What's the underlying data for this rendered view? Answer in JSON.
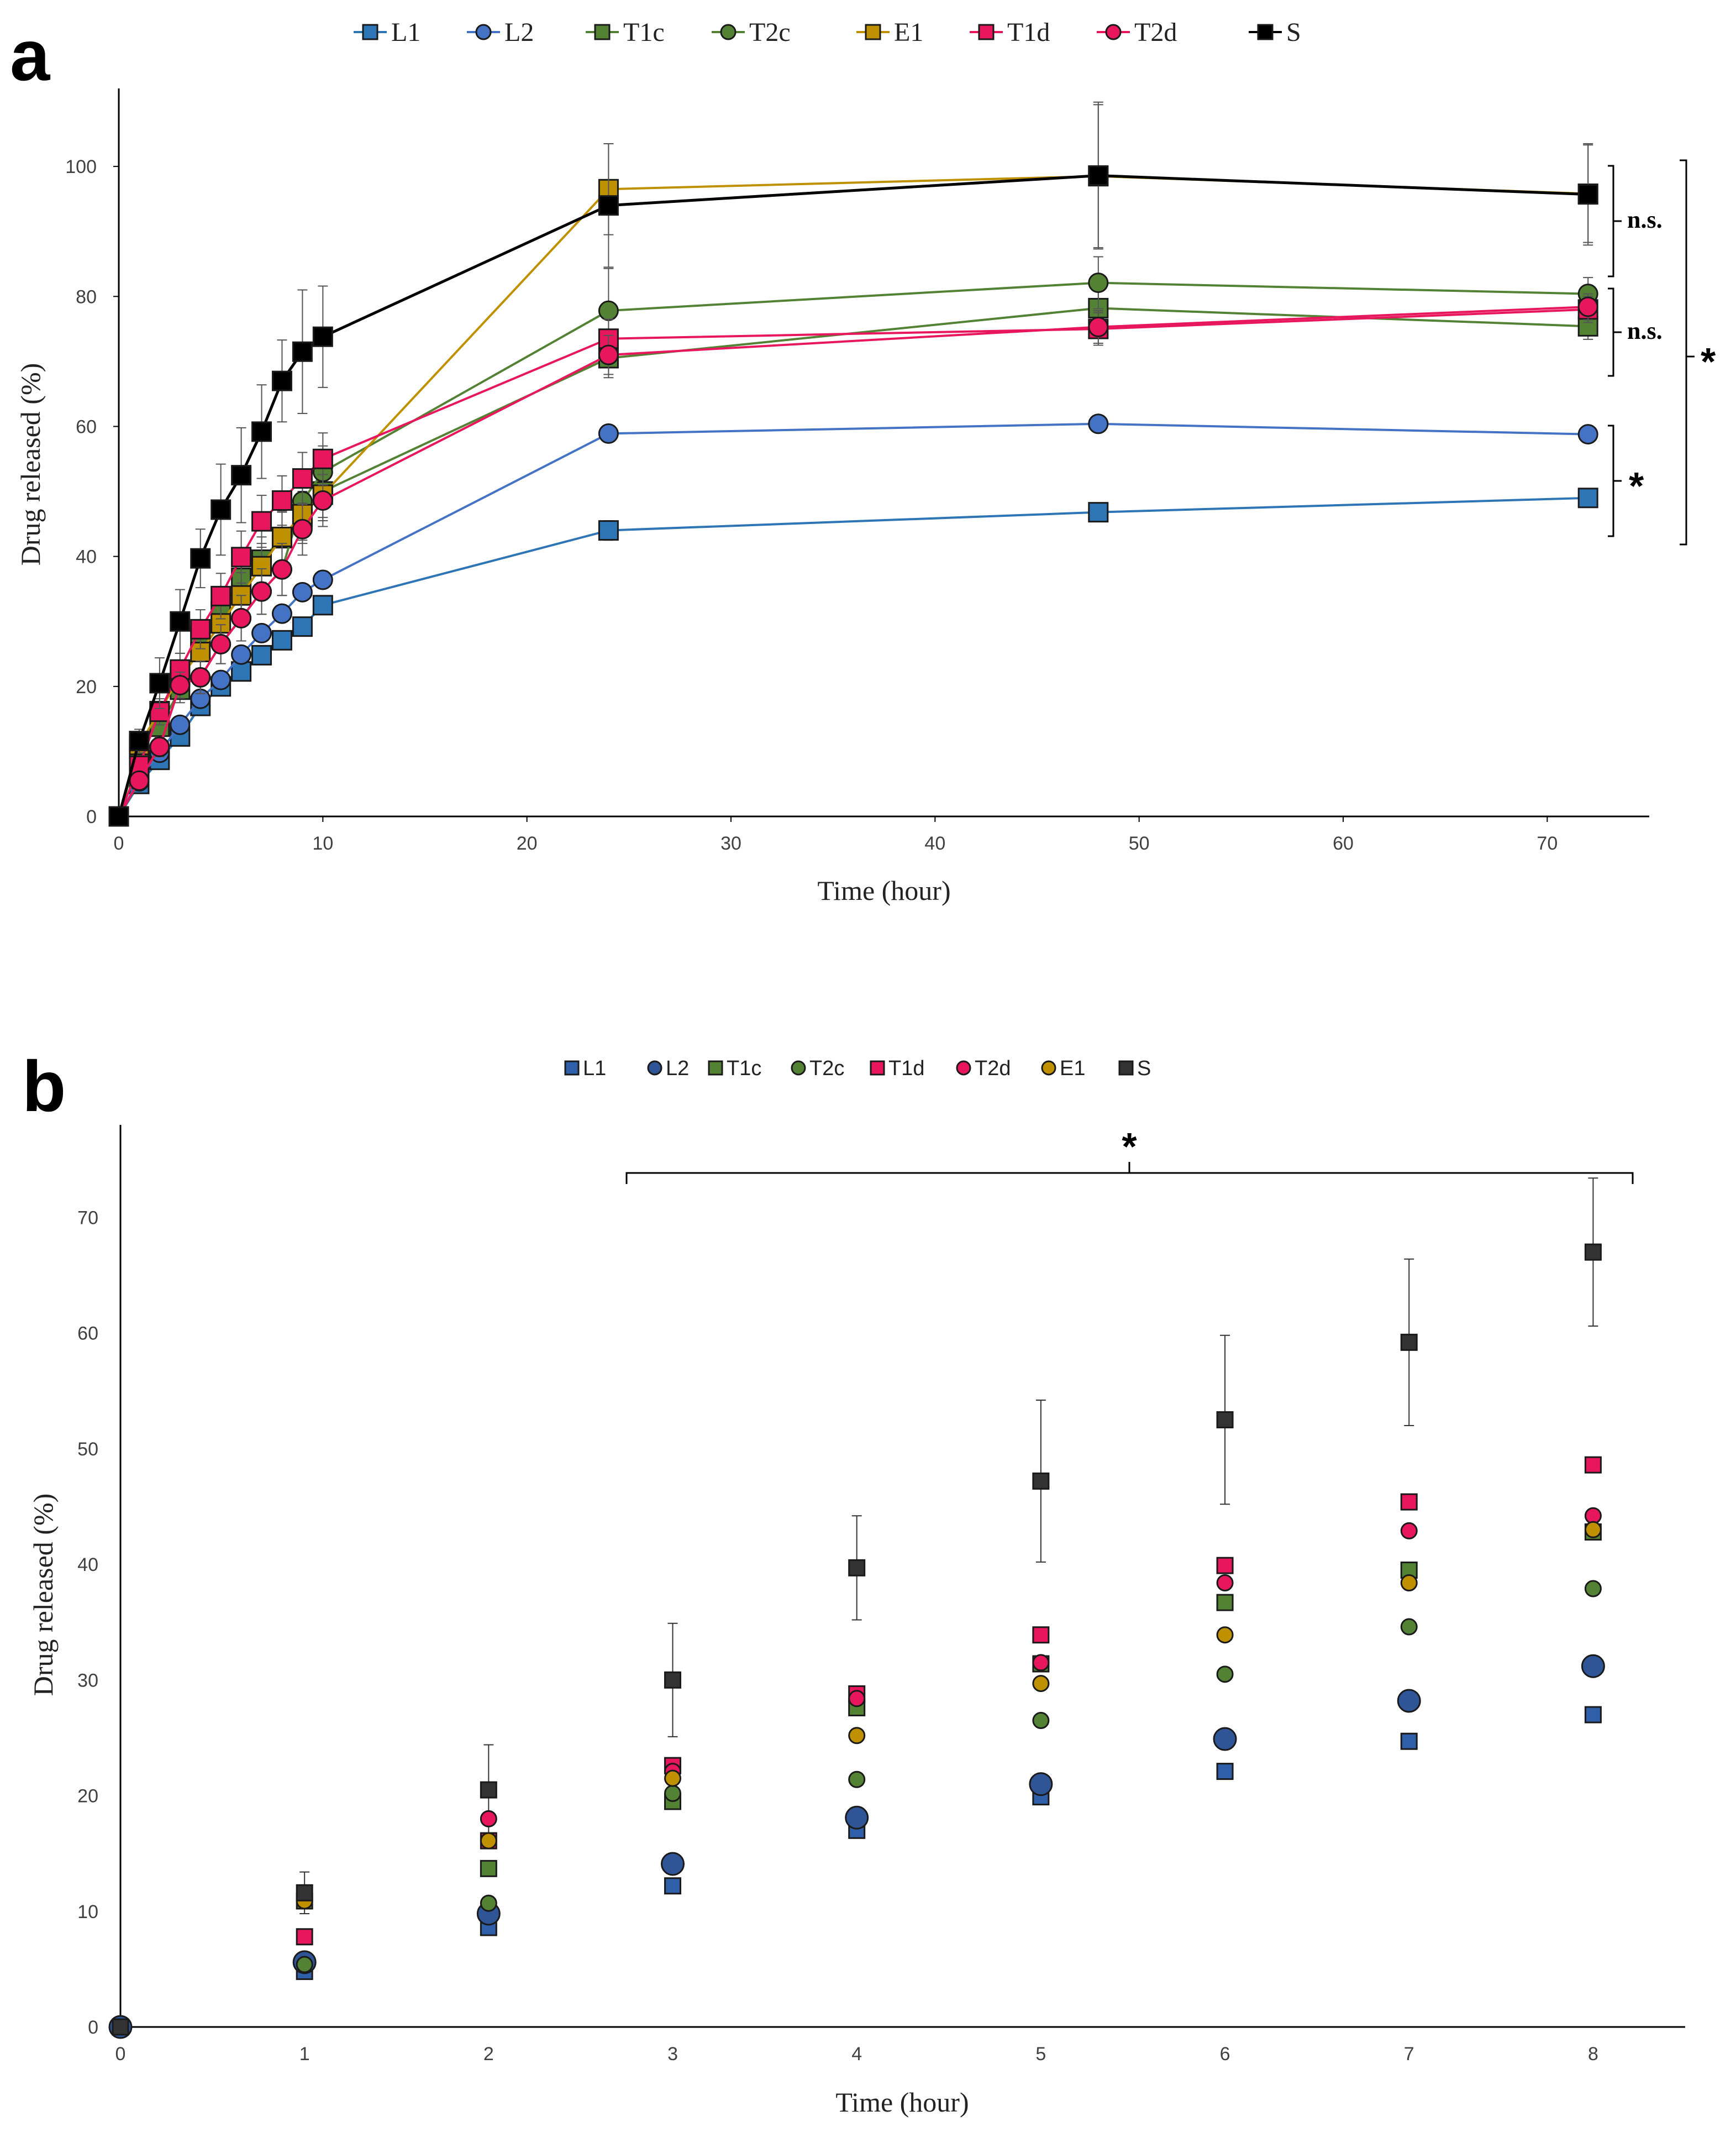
{
  "chart_data": [
    {
      "panel": "a",
      "type": "line",
      "xlabel": "Time (hour)",
      "ylabel": "Drug released (%)",
      "xlim": [
        0,
        75
      ],
      "ylim": [
        0,
        112
      ],
      "xticks": [
        "0",
        "10",
        "20",
        "30",
        "40",
        "50",
        "60",
        "70"
      ],
      "yticks": [
        "0",
        "20",
        "40",
        "60",
        "80",
        "100"
      ],
      "legend_position": "top-center",
      "x": [
        0,
        1,
        2,
        3,
        4,
        5,
        6,
        7,
        8,
        9,
        10,
        24,
        48,
        72
      ],
      "series": [
        {
          "name": "L1",
          "color": "#2E75B6",
          "marker": "square",
          "values": [
            0,
            5,
            8.7,
            12.3,
            17,
            20,
            22.3,
            24.8,
            27.1,
            29.2,
            32.5,
            44,
            46.8,
            49
          ],
          "errors": [
            0,
            0.5,
            0.6,
            0.7,
            0.8,
            0.8,
            0.9,
            1,
            1,
            1,
            1.1,
            1.5,
            1,
            1
          ]
        },
        {
          "name": "L2",
          "color": "#4472C4",
          "marker": "circle",
          "values": [
            0,
            5.8,
            9.8,
            14.1,
            18.1,
            21,
            24.9,
            28.2,
            31.2,
            34.5,
            36.4,
            58.9,
            60.4,
            58.8
          ],
          "errors": [
            0,
            0.5,
            0.7,
            0.8,
            0.9,
            1,
            1.1,
            1.1,
            1.2,
            1.2,
            1.3,
            1,
            1,
            1
          ]
        },
        {
          "name": "T1c",
          "color": "#548235",
          "marker": "square",
          "values": [
            0,
            10.5,
            13.8,
            19.5,
            27.6,
            31.5,
            36.7,
            39.5,
            42.8,
            46,
            50,
            70.5,
            78.2,
            75.4
          ],
          "errors": [
            0,
            1,
            1.5,
            2,
            2.5,
            3,
            3.5,
            3.5,
            4,
            4,
            4,
            3,
            3,
            2
          ]
        },
        {
          "name": "T2c",
          "color": "#548235",
          "marker": "circle",
          "values": [
            0,
            5.4,
            10.7,
            20.2,
            21.4,
            26.5,
            30.5,
            34.6,
            38,
            48.5,
            53,
            77.8,
            82.1,
            80.4
          ],
          "errors": [
            0,
            1,
            1.5,
            2,
            2.5,
            3,
            3.5,
            3.5,
            4,
            4,
            4,
            6.5,
            4,
            2.5
          ]
        },
        {
          "name": "E1",
          "color": "#BF9000",
          "marker": "square",
          "values": [
            0,
            11,
            16.2,
            21.5,
            25.3,
            29.7,
            34,
            38.5,
            43,
            46.5,
            49.5,
            96.5,
            98.5,
            95.8
          ],
          "errors": [
            0,
            1,
            1.5,
            2,
            2.5,
            3,
            3.5,
            3.5,
            4,
            4,
            4,
            7,
            11,
            7.5
          ]
        },
        {
          "name": "T1d",
          "color": "#E8175D",
          "marker": "square",
          "values": [
            0,
            7.8,
            16.1,
            22.6,
            28.8,
            33.9,
            39.9,
            45.4,
            48.6,
            52,
            55,
            73.5,
            75,
            78
          ],
          "errors": [
            0,
            1,
            2,
            2.5,
            3,
            3.5,
            4,
            4,
            3.8,
            4,
            4,
            3,
            2.5,
            2
          ]
        },
        {
          "name": "T2d",
          "color": "#E8175D",
          "marker": "circle",
          "values": [
            0,
            5.5,
            10.7,
            20.2,
            21.4,
            26.5,
            30.5,
            34.6,
            38,
            44.2,
            48.6,
            71,
            75.3,
            78.4
          ],
          "errors": [
            0,
            1,
            1.5,
            2,
            2.5,
            3,
            3.5,
            3.5,
            4,
            4,
            4,
            3,
            2.5,
            2
          ]
        },
        {
          "name": "S",
          "color": "#000000",
          "marker": "square",
          "values": [
            0,
            11.6,
            20.5,
            30,
            39.7,
            47.2,
            52.5,
            59.2,
            67,
            71.5,
            73.8,
            94,
            98.6,
            95.7
          ],
          "errors": [
            0,
            1.8,
            3.9,
            4.9,
            4.5,
            7,
            7.3,
            7.2,
            6.3,
            9.5,
            7.8,
            9.5,
            11.3,
            7.8
          ]
        }
      ],
      "annotations": [
        {
          "text": "n.s.",
          "groups": [
            "E1",
            "S"
          ]
        },
        {
          "text": "n.s.",
          "groups": [
            "T1c",
            "T2c",
            "T1d",
            "T2d"
          ]
        },
        {
          "text": "*",
          "groups": [
            "L1",
            "L2"
          ]
        },
        {
          "text": "*",
          "groups": [
            "all"
          ]
        }
      ]
    },
    {
      "panel": "b",
      "type": "scatter",
      "xlabel": "Time (hour)",
      "ylabel": "Drug released (%)",
      "xlim": [
        0,
        8.5
      ],
      "ylim": [
        0,
        78
      ],
      "xticks": [
        "0",
        "1",
        "2",
        "3",
        "4",
        "5",
        "6",
        "7",
        "8"
      ],
      "yticks": [
        "0",
        "10",
        "20",
        "30",
        "40",
        "50",
        "60",
        "70"
      ],
      "legend_position": "top-center",
      "x": [
        0,
        1,
        2,
        3,
        4,
        5,
        6,
        7,
        8
      ],
      "series": [
        {
          "name": "L1",
          "color": "#2E5FA8",
          "marker": "square",
          "size": "small",
          "values": [
            0,
            4.8,
            8.6,
            12.2,
            17,
            19.9,
            22.1,
            24.7,
            27
          ]
        },
        {
          "name": "L2",
          "color": "#2F5597",
          "marker": "circle",
          "size": "large",
          "values": [
            0,
            5.6,
            9.8,
            14.1,
            18.1,
            21,
            24.9,
            28.2,
            31.2
          ]
        },
        {
          "name": "T1c",
          "color": "#548235",
          "marker": "square",
          "size": "small",
          "values": [
            0,
            10.9,
            13.7,
            19.5,
            27.6,
            31.4,
            36.7,
            39.5,
            42.8
          ]
        },
        {
          "name": "T2c",
          "color": "#548235",
          "marker": "circle",
          "size": "small",
          "values": [
            0,
            5.4,
            10.7,
            20.2,
            21.4,
            26.5,
            30.5,
            34.6,
            37.9
          ]
        },
        {
          "name": "T1d",
          "color": "#E8175D",
          "marker": "square",
          "size": "small",
          "values": [
            0,
            7.8,
            16.1,
            22.6,
            28.8,
            33.9,
            39.9,
            45.4,
            48.6
          ]
        },
        {
          "name": "T2d",
          "color": "#E8175D",
          "marker": "circle",
          "size": "small",
          "values": [
            0,
            11,
            18,
            22.1,
            28.4,
            31.5,
            38.4,
            42.9,
            44.2
          ]
        },
        {
          "name": "E1",
          "color": "#BF9000",
          "marker": "circle",
          "size": "small",
          "values": [
            0,
            10.9,
            16.1,
            21.5,
            25.2,
            29.7,
            33.9,
            38.4,
            43
          ]
        },
        {
          "name": "S",
          "color": "#333333",
          "marker": "square",
          "size": "small",
          "values": [
            0,
            11.6,
            20.5,
            30,
            39.7,
            47.2,
            52.5,
            59.2,
            67
          ],
          "errors": [
            0,
            1.8,
            3.9,
            4.9,
            4.5,
            7,
            7.3,
            7.2,
            6.4
          ]
        }
      ],
      "annotations": [
        {
          "text": "*",
          "x_range": [
            2.7,
            8.2
          ]
        }
      ]
    }
  ],
  "panel_a": {
    "letter": "a",
    "xlabel": "Time (hour)",
    "ylabel": "Drug released (%)",
    "annot_ns1": "n.s.",
    "annot_ns2": "n.s.",
    "annot_star_l": "*",
    "annot_star_all": "*"
  },
  "panel_b": {
    "letter": "b",
    "xlabel": "Time (hour)",
    "ylabel": "Drug released (%)",
    "annot_star": "*"
  }
}
